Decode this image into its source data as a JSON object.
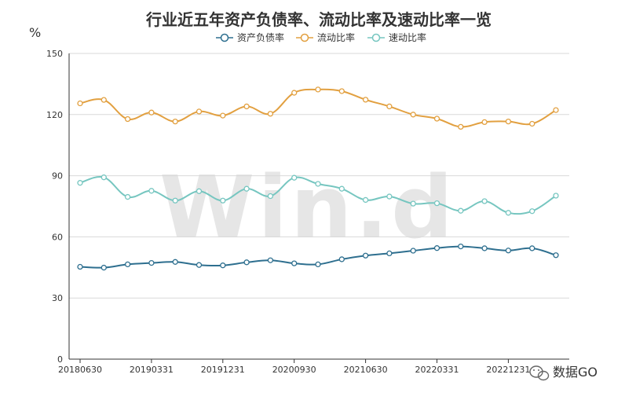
{
  "chart_data": {
    "type": "line",
    "title": "行业近五年资产负债率、流动比率及速动比率一览",
    "unit": "%",
    "ylim": [
      0,
      150
    ],
    "yticks": [
      0,
      30,
      60,
      90,
      120,
      150
    ],
    "grid": true,
    "legend_position": "top",
    "x": [
      "20180630",
      "20180930",
      "20181231",
      "20190331",
      "20190630",
      "20190930",
      "20191231",
      "20200331",
      "20200630",
      "20200930",
      "20201231",
      "20210331",
      "20210630",
      "20210930",
      "20211231",
      "20220331",
      "20220630",
      "20220930",
      "20221231",
      "20230331",
      "20230630"
    ],
    "xtick_labels": [
      "20180630",
      "20190331",
      "20191231",
      "20200930",
      "20210630",
      "20220331",
      "20221231"
    ],
    "series": [
      {
        "name": "资产负债率",
        "color": "#2e6f8f",
        "values": [
          45.3,
          44.9,
          46.5,
          47.2,
          47.7,
          46.2,
          46.0,
          47.5,
          48.5,
          47.0,
          46.5,
          49.0,
          50.8,
          51.9,
          53.2,
          54.5,
          55.3,
          54.4,
          53.3,
          54.4,
          51.0
        ]
      },
      {
        "name": "流动比率",
        "color": "#e2a040",
        "values": [
          125.5,
          127.2,
          117.8,
          121.0,
          116.6,
          121.5,
          119.5,
          124.0,
          120.4,
          130.7,
          132.3,
          131.5,
          127.3,
          124.0,
          120.0,
          118.0,
          114.0,
          116.3,
          116.6,
          115.5,
          122.2
        ]
      },
      {
        "name": "速动比率",
        "color": "#76c6c0",
        "values": [
          86.5,
          89.2,
          79.6,
          82.6,
          77.8,
          82.4,
          77.8,
          83.6,
          80.0,
          89.0,
          86.0,
          83.6,
          78.1,
          79.8,
          76.3,
          76.5,
          72.8,
          77.5,
          71.8,
          72.6,
          80.2
        ]
      }
    ]
  },
  "watermark": "Win.d",
  "brand": {
    "label": "数据GO",
    "icon": "wechat-icon"
  }
}
